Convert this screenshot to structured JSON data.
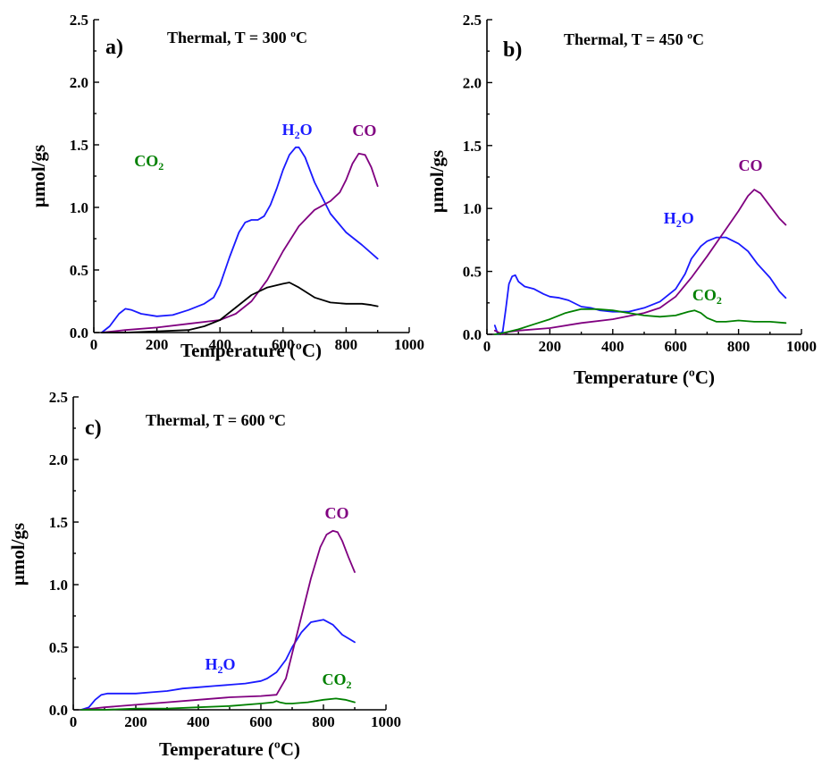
{
  "colors": {
    "H2O": "#1a1aff",
    "CO": "#800080",
    "CO2": "#008000",
    "unlabeled": "#000000",
    "axis": "#000000"
  },
  "chart_data": [
    {
      "id": "a",
      "type": "line",
      "letter": "a)",
      "title": "Thermal, T = 300 ºC",
      "xlabel": "Temperature (ºC)",
      "ylabel": "µmol/gs",
      "xlim": [
        0,
        1000
      ],
      "ylim": [
        0,
        2.5
      ],
      "xticks": [
        "0",
        "200",
        "400",
        "600",
        "800",
        "1000"
      ],
      "yticks": [
        "0.0",
        "0.5",
        "1.0",
        "1.5",
        "2.0",
        "2.5"
      ],
      "grid": false,
      "series": [
        {
          "key": "H2O",
          "label_main": "H",
          "label_sub": "2",
          "label_tail": "O",
          "label_pos": [
            645,
            1.58
          ],
          "x": [
            25,
            50,
            80,
            100,
            120,
            150,
            200,
            250,
            300,
            350,
            380,
            400,
            430,
            460,
            480,
            500,
            520,
            540,
            560,
            580,
            600,
            620,
            640,
            650,
            670,
            700,
            750,
            800,
            850,
            900
          ],
          "y": [
            0.0,
            0.05,
            0.15,
            0.19,
            0.18,
            0.15,
            0.13,
            0.14,
            0.18,
            0.23,
            0.28,
            0.38,
            0.6,
            0.8,
            0.88,
            0.9,
            0.9,
            0.93,
            1.02,
            1.15,
            1.3,
            1.42,
            1.48,
            1.48,
            1.4,
            1.2,
            0.95,
            0.8,
            0.7,
            0.59
          ]
        },
        {
          "key": "CO",
          "label_main": "CO",
          "label_sub": "",
          "label_tail": "",
          "label_pos": [
            858,
            1.57
          ],
          "x": [
            25,
            100,
            200,
            300,
            400,
            450,
            500,
            550,
            600,
            650,
            700,
            750,
            780,
            800,
            820,
            840,
            860,
            880,
            900
          ],
          "y": [
            0.0,
            0.02,
            0.04,
            0.07,
            0.1,
            0.15,
            0.25,
            0.42,
            0.65,
            0.85,
            0.98,
            1.05,
            1.12,
            1.22,
            1.35,
            1.43,
            1.42,
            1.32,
            1.17
          ]
        },
        {
          "key": "unlabeled",
          "label_main": "",
          "label_sub": "",
          "label_tail": "",
          "label_pos": null,
          "x": [
            25,
            100,
            200,
            300,
            350,
            400,
            450,
            500,
            550,
            600,
            620,
            650,
            700,
            750,
            800,
            850,
            880,
            900
          ],
          "y": [
            0.0,
            0.0,
            0.01,
            0.02,
            0.05,
            0.1,
            0.2,
            0.3,
            0.36,
            0.39,
            0.4,
            0.36,
            0.28,
            0.24,
            0.23,
            0.23,
            0.22,
            0.21
          ]
        },
        {
          "key": "CO2",
          "label_main": "CO",
          "label_sub": "2",
          "label_tail": "",
          "label_pos": [
            175,
            1.33
          ],
          "x": [],
          "y": []
        }
      ]
    },
    {
      "id": "b",
      "type": "line",
      "letter": "b)",
      "title": "Thermal, T = 450 ºC",
      "xlabel": "Temperature (ºC)",
      "ylabel": "µmol/gs",
      "xlim": [
        0,
        1000
      ],
      "ylim": [
        0,
        2.5
      ],
      "xticks": [
        "0",
        "200",
        "400",
        "600",
        "800",
        "1000"
      ],
      "yticks": [
        "0.0",
        "0.5",
        "1.0",
        "1.5",
        "2.0",
        "2.5"
      ],
      "grid": false,
      "series": [
        {
          "key": "H2O",
          "label_main": "H",
          "label_sub": "2",
          "label_tail": "O",
          "label_pos": [
            610,
            0.88
          ],
          "x": [
            25,
            35,
            50,
            60,
            70,
            80,
            90,
            100,
            120,
            150,
            180,
            200,
            230,
            260,
            300,
            330,
            360,
            400,
            450,
            500,
            550,
            600,
            630,
            650,
            680,
            700,
            730,
            760,
            800,
            830,
            860,
            900,
            930,
            950
          ],
          "y": [
            0.07,
            0.0,
            0.02,
            0.2,
            0.4,
            0.46,
            0.47,
            0.42,
            0.38,
            0.36,
            0.32,
            0.3,
            0.29,
            0.27,
            0.22,
            0.21,
            0.19,
            0.18,
            0.18,
            0.21,
            0.26,
            0.36,
            0.48,
            0.6,
            0.7,
            0.74,
            0.77,
            0.77,
            0.72,
            0.66,
            0.56,
            0.45,
            0.34,
            0.29
          ]
        },
        {
          "key": "CO",
          "label_main": "CO",
          "label_sub": "",
          "label_tail": "",
          "label_pos": [
            838,
            1.3
          ],
          "x": [
            25,
            50,
            70,
            100,
            200,
            300,
            400,
            500,
            550,
            600,
            650,
            700,
            750,
            800,
            830,
            850,
            870,
            900,
            930,
            950
          ],
          "y": [
            0.03,
            0.0,
            0.02,
            0.03,
            0.05,
            0.09,
            0.12,
            0.17,
            0.21,
            0.3,
            0.45,
            0.62,
            0.8,
            0.98,
            1.1,
            1.15,
            1.12,
            1.02,
            0.92,
            0.87
          ]
        },
        {
          "key": "CO2",
          "label_main": "CO",
          "label_sub": "2",
          "label_tail": "",
          "label_pos": [
            700,
            0.27
          ],
          "x": [
            25,
            50,
            100,
            150,
            200,
            250,
            300,
            350,
            400,
            450,
            500,
            550,
            600,
            640,
            660,
            680,
            700,
            730,
            760,
            800,
            850,
            900,
            950
          ],
          "y": [
            0.0,
            0.01,
            0.04,
            0.08,
            0.12,
            0.17,
            0.2,
            0.2,
            0.19,
            0.17,
            0.15,
            0.14,
            0.15,
            0.18,
            0.19,
            0.17,
            0.13,
            0.1,
            0.1,
            0.11,
            0.1,
            0.1,
            0.09
          ]
        }
      ]
    },
    {
      "id": "c",
      "type": "line",
      "letter": "c)",
      "title": "Thermal, T = 600 ºC",
      "xlabel": "Temperature (ºC)",
      "ylabel": "µmol/gs",
      "xlim": [
        0,
        1000
      ],
      "ylim": [
        0,
        2.5
      ],
      "xticks": [
        "0",
        "200",
        "400",
        "600",
        "800",
        "1000"
      ],
      "yticks": [
        "0.0",
        "0.5",
        "1.0",
        "1.5",
        "2.0",
        "2.5"
      ],
      "grid": false,
      "series": [
        {
          "key": "H2O",
          "label_main": "H",
          "label_sub": "2",
          "label_tail": "O",
          "label_pos": [
            470,
            0.32
          ],
          "x": [
            25,
            50,
            70,
            90,
            110,
            150,
            200,
            250,
            300,
            350,
            400,
            450,
            500,
            550,
            600,
            620,
            650,
            680,
            700,
            730,
            760,
            800,
            830,
            860,
            900
          ],
          "y": [
            0.0,
            0.02,
            0.08,
            0.12,
            0.13,
            0.13,
            0.13,
            0.14,
            0.15,
            0.17,
            0.18,
            0.19,
            0.2,
            0.21,
            0.23,
            0.25,
            0.3,
            0.4,
            0.5,
            0.62,
            0.7,
            0.72,
            0.68,
            0.6,
            0.54
          ]
        },
        {
          "key": "CO",
          "label_main": "CO",
          "label_sub": "",
          "label_tail": "",
          "label_pos": [
            843,
            1.53
          ],
          "x": [
            25,
            100,
            200,
            300,
            400,
            500,
            600,
            650,
            680,
            700,
            730,
            760,
            790,
            810,
            830,
            845,
            860,
            880,
            900
          ],
          "y": [
            0.0,
            0.02,
            0.04,
            0.06,
            0.08,
            0.1,
            0.11,
            0.12,
            0.25,
            0.45,
            0.75,
            1.05,
            1.3,
            1.4,
            1.43,
            1.42,
            1.35,
            1.22,
            1.1
          ]
        },
        {
          "key": "CO2",
          "label_main": "CO",
          "label_sub": "2",
          "label_tail": "",
          "label_pos": [
            843,
            0.2
          ],
          "x": [
            25,
            100,
            200,
            300,
            400,
            500,
            600,
            640,
            650,
            660,
            680,
            700,
            750,
            800,
            840,
            870,
            900
          ],
          "y": [
            0.0,
            0.0,
            0.01,
            0.01,
            0.02,
            0.03,
            0.05,
            0.06,
            0.07,
            0.06,
            0.05,
            0.05,
            0.06,
            0.08,
            0.09,
            0.08,
            0.06
          ]
        }
      ]
    }
  ]
}
